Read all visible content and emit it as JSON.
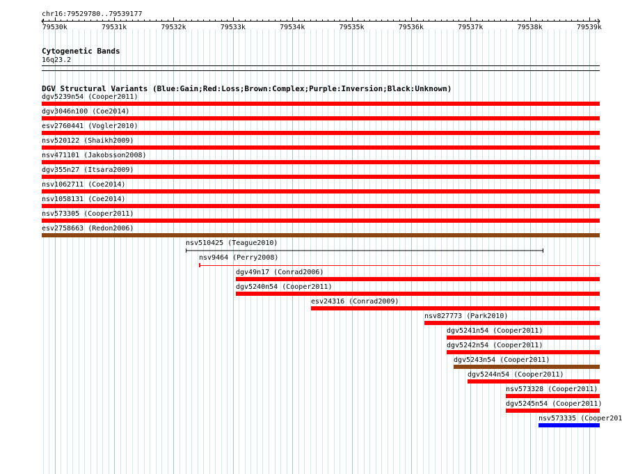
{
  "ruler": {
    "label": "chr16:79529780..79539177",
    "ticks": [
      "79530k",
      "79531k",
      "79532k",
      "79533k",
      "79534k",
      "79535k",
      "79536k",
      "79537k",
      "79538k",
      "79539k"
    ]
  },
  "cytoband_track": {
    "title": "Cytogenetic Bands",
    "band": "16q23.2"
  },
  "dgv_track": {
    "title": "DGV Structural Variants (Blue:Gain;Red:Loss;Brown:Complex;Purple:Inversion;Black:Unknown)",
    "colors": {
      "loss": "#ff0000",
      "gain": "#0000ff",
      "complex": "#8b4513",
      "unknown": "#000000"
    },
    "features": [
      {
        "label": "dgv5239n54 (Cooper2011)",
        "type": "loss",
        "start": "79529780",
        "end": "79539177"
      },
      {
        "label": "dgv3046n100 (Coe2014)",
        "type": "loss",
        "start": "79529780",
        "end": "79539177"
      },
      {
        "label": "esv2760441 (Vogler2010)",
        "type": "loss",
        "start": "79529780",
        "end": "79539177"
      },
      {
        "label": "nsv520122 (Shaikh2009)",
        "type": "loss",
        "start": "79529780",
        "end": "79539177"
      },
      {
        "label": "nsv471101 (Jakobsson2008)",
        "type": "loss",
        "start": "79529780",
        "end": "79539177"
      },
      {
        "label": "dgv355n27 (Itsara2009)",
        "type": "loss",
        "start": "79529780",
        "end": "79539177"
      },
      {
        "label": "nsv1062711 (Coe2014)",
        "type": "loss",
        "start": "79529780",
        "end": "79539177"
      },
      {
        "label": "nsv1058131 (Coe2014)",
        "type": "loss",
        "start": "79529780",
        "end": "79539177"
      },
      {
        "label": "nsv573305 (Cooper2011)",
        "type": "loss",
        "start": "79529780",
        "end": "79539177"
      },
      {
        "label": "esv2758663 (Redon2006)",
        "type": "complex",
        "start": "79529780",
        "end": "79539177"
      },
      {
        "label": "nsv510425 (Teague2010)",
        "type": "unknown",
        "start": "79532210",
        "end": "79538230"
      },
      {
        "label": "nsv9464 (Perry2008)",
        "type": "loss",
        "start": "79532430",
        "end": "79539177"
      },
      {
        "label": "dgv49n17 (Conrad2006)",
        "type": "loss",
        "start": "79533050",
        "end": "79539177"
      },
      {
        "label": "dgv5240n54 (Cooper2011)",
        "type": "loss",
        "start": "79533050",
        "end": "79539177"
      },
      {
        "label": "esv24316 (Conrad2009)",
        "type": "loss",
        "start": "79534310",
        "end": "79539177"
      },
      {
        "label": "nsv827773 (Park2010)",
        "type": "loss",
        "start": "79536230",
        "end": "79539177"
      },
      {
        "label": "dgv5241n54 (Cooper2011)",
        "type": "loss",
        "start": "79536600",
        "end": "79539177"
      },
      {
        "label": "dgv5242n54 (Cooper2011)",
        "type": "loss",
        "start": "79536600",
        "end": "79539177"
      },
      {
        "label": "dgv5243n54 (Cooper2011)",
        "type": "complex",
        "start": "79536720",
        "end": "79539177"
      },
      {
        "label": "dgv5244n54 (Cooper2011)",
        "type": "loss",
        "start": "79536950",
        "end": "79539177"
      },
      {
        "label": "nsv573328 (Cooper2011)",
        "type": "loss",
        "start": "79537600",
        "end": "79539177"
      },
      {
        "label": "dgv5245n54 (Cooper2011)",
        "type": "loss",
        "start": "79537600",
        "end": "79539177"
      },
      {
        "label": "nsv573335 (Cooper201",
        "type": "gain",
        "start": "79538150",
        "end": "79539177"
      }
    ]
  }
}
